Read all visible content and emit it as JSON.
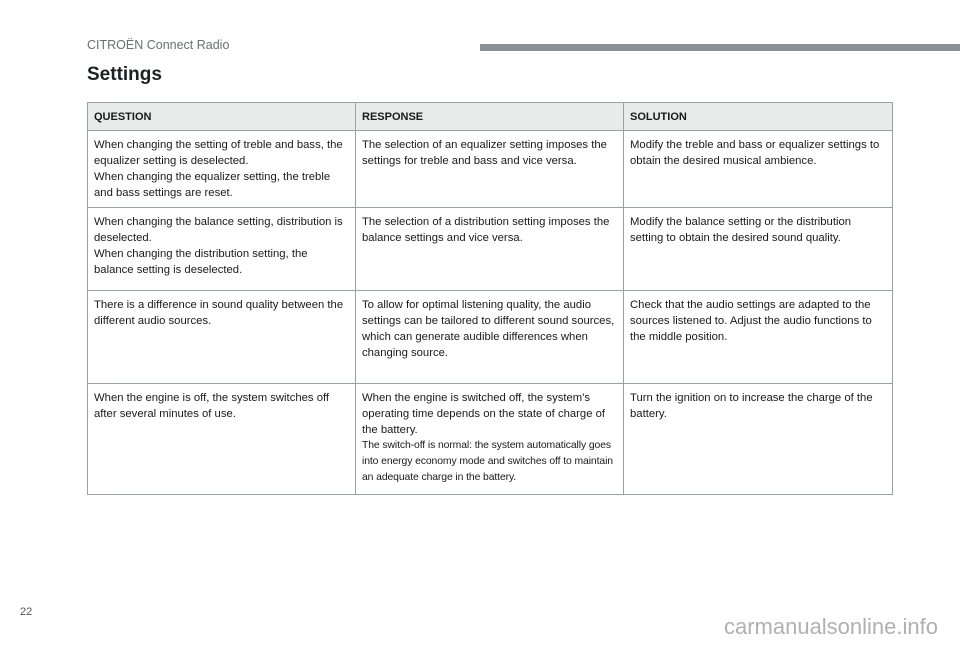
{
  "header": {
    "brand": "CITROËN Connect Radio"
  },
  "title": "Settings",
  "table": {
    "columns": [
      "QUESTION",
      "RESPONSE",
      "SOLUTION"
    ],
    "rows": [
      {
        "question": [
          "When changing the setting of treble and bass, the equalizer setting is deselected.",
          "When changing the equalizer setting, the treble and bass settings are reset."
        ],
        "response": [
          "The selection of an equalizer setting imposes the settings for treble and bass and vice versa."
        ],
        "solution": [
          "Modify the treble and bass or equalizer settings to obtain the desired musical ambience."
        ]
      },
      {
        "question": [
          "When changing the balance setting, distribution is deselected.",
          "When changing the distribution setting, the balance setting is deselected."
        ],
        "response": [
          "The selection of a distribution setting imposes the balance settings and vice versa."
        ],
        "solution": [
          "Modify the balance setting or the distribution setting to obtain the desired sound quality."
        ]
      },
      {
        "question": [
          "There is a difference in sound quality between the different audio sources."
        ],
        "response": [
          "To allow for optimal listening quality, the audio settings can be tailored to different sound sources, which can generate audible differences when changing source."
        ],
        "solution": [
          "Check that the audio settings are adapted to the sources listened to. Adjust the audio functions to the middle position."
        ]
      },
      {
        "question": [
          "When the engine is off, the system switches off after several minutes of use."
        ],
        "response": [
          "When the engine is switched off, the system's operating time depends on the state of charge of the battery.",
          "The switch-off is normal: the system automatically goes into energy economy mode and switches off to maintain an adequate charge in the battery."
        ],
        "solution": [
          "Turn the ignition on to increase the charge of the battery."
        ]
      }
    ]
  },
  "footer": {
    "page_number": "22",
    "watermark": "carmanualsonline.info"
  }
}
